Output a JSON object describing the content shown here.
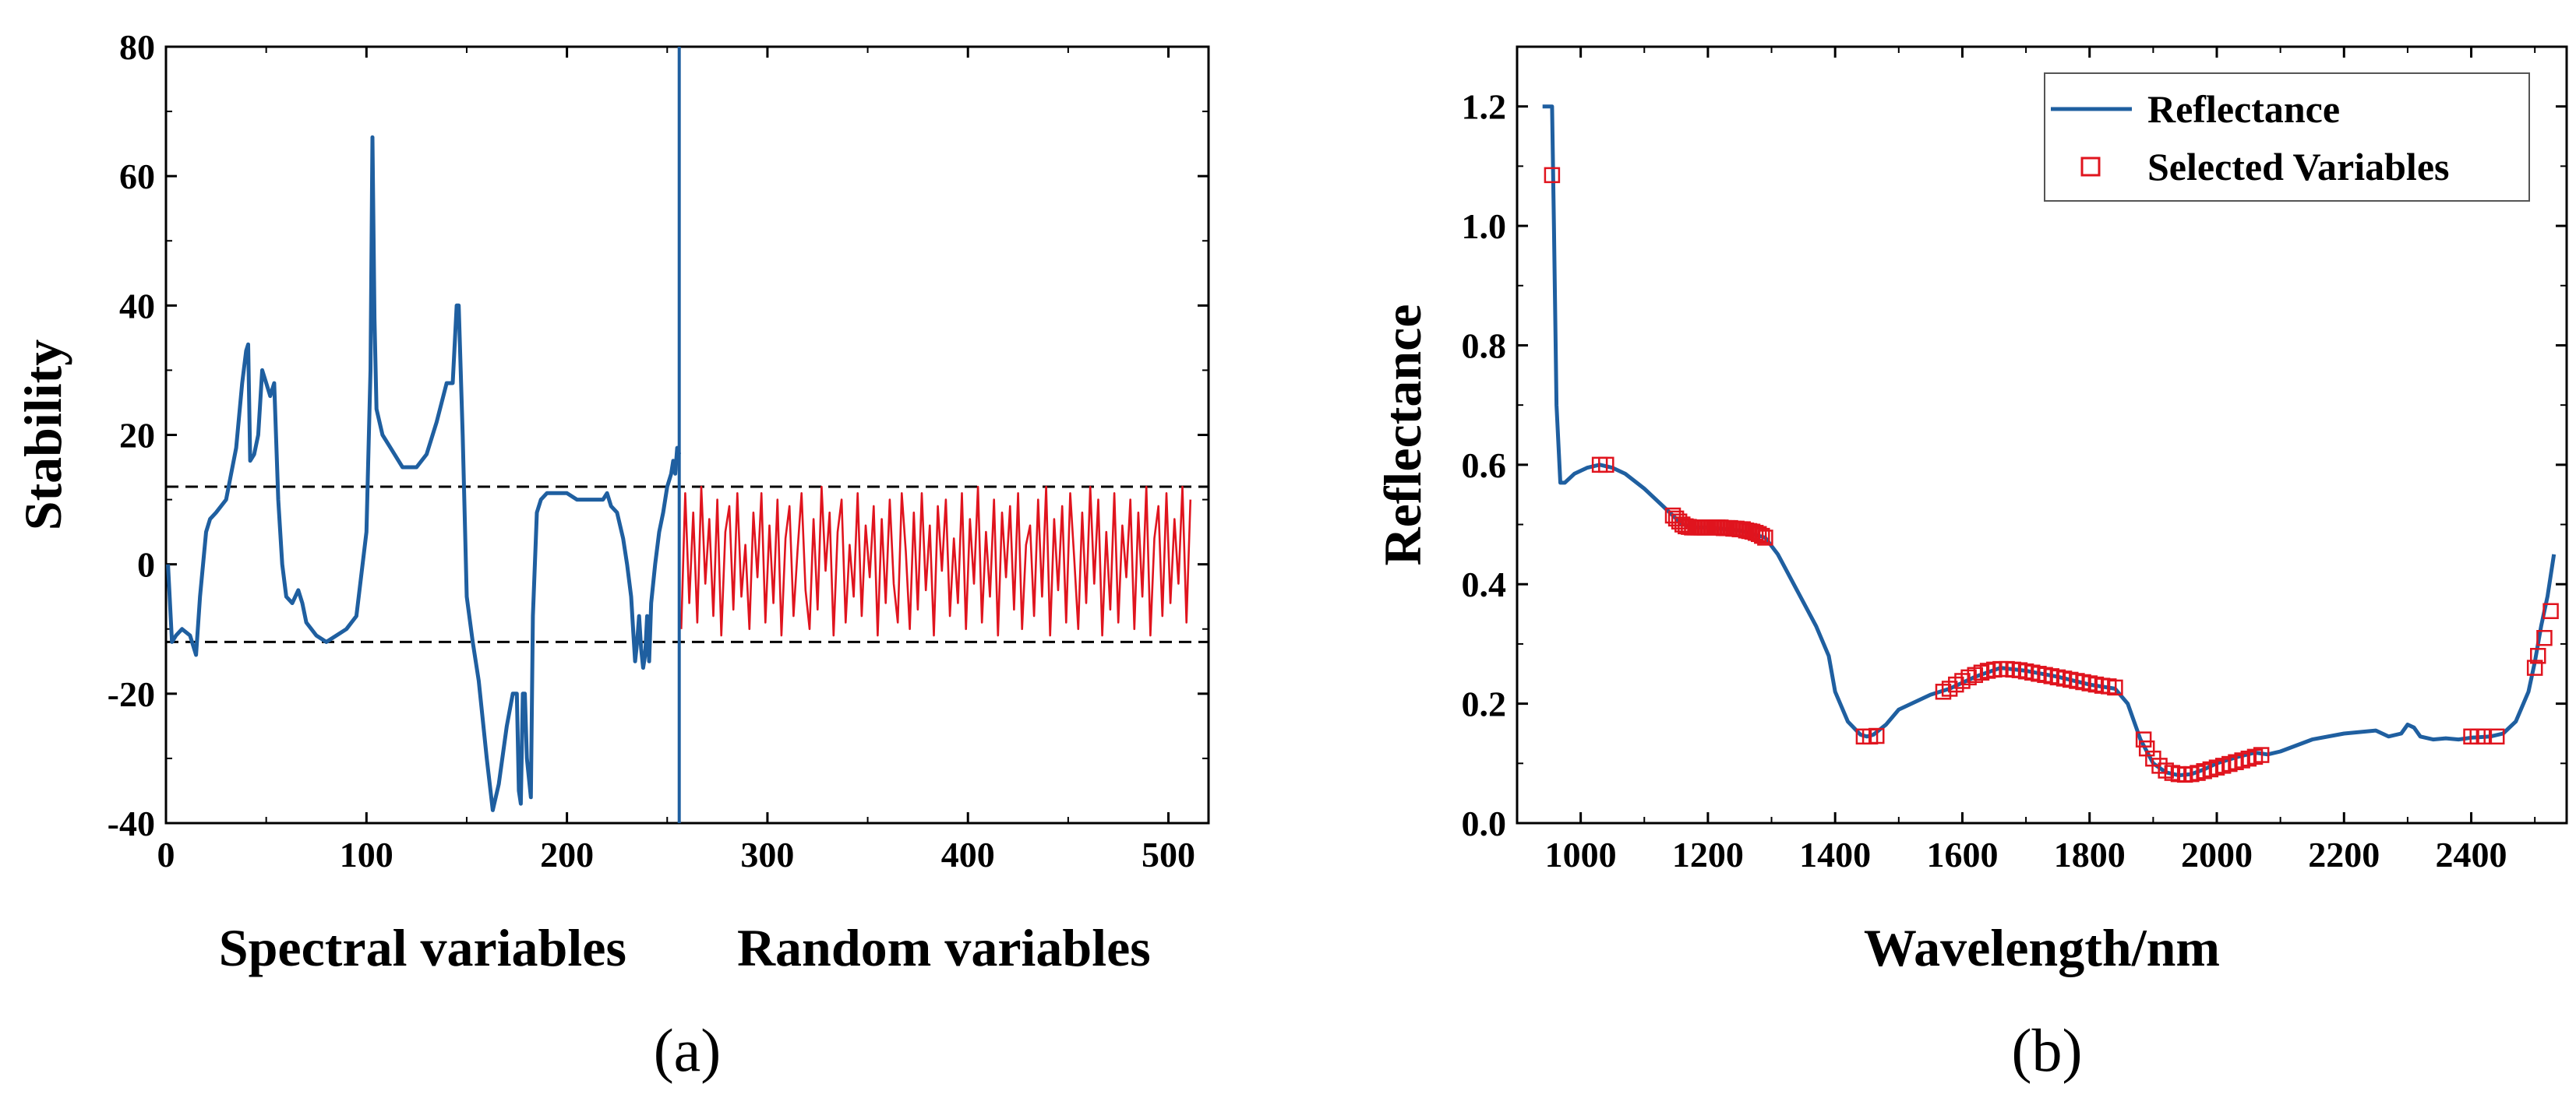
{
  "colors": {
    "spectral": "#1f5fa0",
    "random": "#e0141e",
    "marker": "#e0141e",
    "axis": "#000000"
  },
  "chart_data": [
    {
      "type": "line",
      "panel_label": "(a)",
      "title": "",
      "xlabel_left": "Spectral variables",
      "xlabel_right": "Random variables",
      "ylabel": "Stability",
      "xlim": [
        0,
        520
      ],
      "ylim": [
        -40,
        80
      ],
      "xticks": [
        0,
        100,
        200,
        300,
        400,
        500
      ],
      "yticks": [
        -40,
        -20,
        0,
        20,
        40,
        60,
        80
      ],
      "threshold_lines": [
        12,
        -12
      ],
      "divider_x": 256,
      "series": [
        {
          "name": "Spectral variables",
          "x": [
            1,
            3,
            5,
            8,
            12,
            15,
            17,
            20,
            22,
            25,
            30,
            35,
            38,
            40,
            41,
            42,
            44,
            46,
            48,
            50,
            52,
            54,
            56,
            58,
            60,
            63,
            66,
            68,
            70,
            75,
            80,
            85,
            90,
            95,
            100,
            102,
            103,
            104,
            105,
            108,
            112,
            118,
            125,
            130,
            135,
            140,
            143,
            145,
            146,
            148,
            150,
            153,
            156,
            160,
            163,
            166,
            170,
            173,
            175,
            176,
            177,
            178,
            179,
            180,
            182,
            183,
            185,
            187,
            190,
            195,
            200,
            205,
            210,
            215,
            218,
            220,
            222,
            225,
            228,
            230,
            232,
            233,
            234,
            235,
            236,
            237,
            238,
            239,
            240,
            241,
            242,
            244,
            246,
            248,
            250,
            252,
            253,
            254,
            255,
            256
          ],
          "values": [
            0,
            -12,
            -11,
            -10,
            -11,
            -14,
            -5,
            5,
            7,
            8,
            10,
            18,
            28,
            33,
            34,
            16,
            17,
            20,
            30,
            28,
            26,
            28,
            10,
            0,
            -5,
            -6,
            -4,
            -6,
            -9,
            -11,
            -12,
            -11,
            -10,
            -8,
            5,
            30,
            66,
            38,
            24,
            20,
            18,
            15,
            15,
            17,
            22,
            28,
            28,
            40,
            40,
            20,
            -5,
            -12,
            -18,
            -30,
            -38,
            -34,
            -25,
            -20,
            -20,
            -35,
            -37,
            -20,
            -20,
            -30,
            -36,
            -8,
            8,
            10,
            11,
            11,
            11,
            10,
            10,
            10,
            10,
            11,
            9,
            8,
            4,
            0,
            -5,
            -10,
            -15,
            -12,
            -8,
            -13,
            -16,
            -14,
            -8,
            -15,
            -6,
            0,
            5,
            8,
            12,
            14,
            16,
            14,
            18,
            17
          ]
        },
        {
          "name": "Random variables",
          "x": [
            257,
            259,
            261,
            263,
            265,
            267,
            269,
            271,
            273,
            275,
            277,
            279,
            281,
            283,
            285,
            287,
            289,
            291,
            293,
            295,
            297,
            299,
            301,
            303,
            305,
            307,
            309,
            311,
            313,
            315,
            317,
            319,
            321,
            323,
            325,
            327,
            329,
            331,
            333,
            335,
            337,
            339,
            341,
            343,
            345,
            347,
            349,
            351,
            353,
            355,
            357,
            359,
            361,
            363,
            365,
            367,
            369,
            371,
            373,
            375,
            377,
            379,
            381,
            383,
            385,
            387,
            389,
            391,
            393,
            395,
            397,
            399,
            401,
            403,
            405,
            407,
            409,
            411,
            413,
            415,
            417,
            419,
            421,
            423,
            425,
            427,
            429,
            431,
            433,
            435,
            437,
            439,
            441,
            443,
            445,
            447,
            449,
            451,
            453,
            455,
            457,
            459,
            461,
            463,
            465,
            467,
            469,
            471,
            473,
            475,
            477,
            479,
            481,
            483,
            485,
            487,
            489,
            491,
            493,
            495,
            497,
            499,
            501,
            503,
            505,
            507,
            509,
            511
          ],
          "values": [
            -10,
            11,
            -6,
            8,
            -9,
            12,
            -3,
            7,
            -8,
            10,
            -11,
            5,
            9,
            -7,
            11,
            -5,
            3,
            -10,
            8,
            -2,
            11,
            -9,
            6,
            -6,
            10,
            -11,
            4,
            9,
            -8,
            2,
            11,
            -4,
            -10,
            7,
            -7,
            12,
            -1,
            8,
            -11,
            5,
            10,
            -9,
            3,
            -5,
            11,
            -8,
            6,
            -2,
            9,
            -11,
            7,
            -6,
            10,
            -3,
            -9,
            11,
            2,
            -10,
            8,
            -7,
            11,
            -4,
            6,
            -11,
            9,
            -1,
            10,
            -8,
            4,
            -6,
            11,
            -10,
            7,
            -3,
            12,
            -9,
            5,
            -5,
            10,
            -11,
            8,
            -2,
            9,
            -7,
            11,
            -10,
            3,
            6,
            -8,
            10,
            -5,
            12,
            -11,
            7,
            -4,
            9,
            -9,
            11,
            1,
            -10,
            8,
            -6,
            12,
            -3,
            10,
            -11,
            5,
            -7,
            11,
            -9,
            6,
            -2,
            10,
            -10,
            8,
            -5,
            12,
            -11,
            4,
            9,
            -8,
            11,
            -6,
            7,
            -3,
            12,
            -9,
            10
          ]
        }
      ]
    },
    {
      "type": "line",
      "panel_label": "(b)",
      "title": "",
      "xlabel": "Wavelength/nm",
      "ylabel": "Reflectance",
      "xlim": [
        900,
        2550
      ],
      "ylim": [
        0.0,
        1.3
      ],
      "xticks": [
        1000,
        1200,
        1400,
        1600,
        1800,
        2000,
        2200,
        2400
      ],
      "yticks": [
        0.0,
        0.2,
        0.4,
        0.6,
        0.8,
        1.0,
        1.2
      ],
      "ytick_labels": [
        "0.0",
        "0.2",
        "0.4",
        "0.6",
        "0.8",
        "1.0",
        "1.2"
      ],
      "legend_position": "top-right",
      "legend": [
        "Reflectance",
        "Selected Variables"
      ],
      "series": [
        {
          "name": "Reflectance",
          "x": [
            940,
            955,
            958,
            962,
            968,
            975,
            990,
            1010,
            1030,
            1050,
            1070,
            1100,
            1130,
            1150,
            1160,
            1180,
            1200,
            1250,
            1290,
            1310,
            1340,
            1370,
            1390,
            1400,
            1420,
            1440,
            1450,
            1460,
            1480,
            1500,
            1550,
            1580,
            1620,
            1660,
            1700,
            1750,
            1800,
            1840,
            1860,
            1880,
            1900,
            1920,
            1940,
            1960,
            1980,
            2000,
            2030,
            2060,
            2080,
            2100,
            2150,
            2200,
            2250,
            2270,
            2290,
            2300,
            2310,
            2320,
            2340,
            2360,
            2380,
            2400,
            2430,
            2450,
            2470,
            2490,
            2500,
            2510,
            2520,
            2530
          ],
          "values": [
            1.2,
            1.2,
            1.0,
            0.7,
            0.57,
            0.57,
            0.585,
            0.595,
            0.6,
            0.595,
            0.585,
            0.56,
            0.53,
            0.51,
            0.5,
            0.495,
            0.495,
            0.49,
            0.478,
            0.45,
            0.39,
            0.33,
            0.28,
            0.22,
            0.17,
            0.148,
            0.145,
            0.148,
            0.165,
            0.19,
            0.215,
            0.225,
            0.245,
            0.26,
            0.255,
            0.245,
            0.232,
            0.225,
            0.2,
            0.14,
            0.1,
            0.085,
            0.08,
            0.082,
            0.09,
            0.1,
            0.11,
            0.118,
            0.115,
            0.12,
            0.14,
            0.15,
            0.155,
            0.145,
            0.15,
            0.165,
            0.16,
            0.145,
            0.14,
            0.142,
            0.14,
            0.143,
            0.145,
            0.15,
            0.17,
            0.22,
            0.27,
            0.33,
            0.38,
            0.45
          ]
        },
        {
          "name": "Selected Variables",
          "x": [
            955,
            1030,
            1040,
            1145,
            1150,
            1155,
            1160,
            1165,
            1170,
            1175,
            1180,
            1185,
            1190,
            1195,
            1200,
            1205,
            1210,
            1215,
            1220,
            1225,
            1230,
            1235,
            1240,
            1245,
            1250,
            1255,
            1260,
            1265,
            1270,
            1275,
            1280,
            1285,
            1290,
            1445,
            1455,
            1465,
            1570,
            1580,
            1590,
            1600,
            1610,
            1620,
            1630,
            1640,
            1650,
            1660,
            1670,
            1680,
            1690,
            1700,
            1710,
            1720,
            1730,
            1740,
            1750,
            1760,
            1770,
            1780,
            1790,
            1800,
            1810,
            1820,
            1830,
            1840,
            1885,
            1890,
            1900,
            1910,
            1920,
            1930,
            1940,
            1950,
            1960,
            1970,
            1980,
            1990,
            2000,
            2010,
            2020,
            2030,
            2040,
            2050,
            2060,
            2070,
            2400,
            2410,
            2420,
            2440,
            2500,
            2505,
            2515,
            2525
          ],
          "values": [
            1.085,
            0.6,
            0.6,
            0.515,
            0.51,
            0.505,
            0.5,
            0.497,
            0.496,
            0.495,
            0.495,
            0.495,
            0.495,
            0.495,
            0.495,
            0.495,
            0.495,
            0.495,
            0.495,
            0.494,
            0.494,
            0.494,
            0.493,
            0.493,
            0.492,
            0.492,
            0.49,
            0.489,
            0.488,
            0.486,
            0.484,
            0.481,
            0.478,
            0.145,
            0.145,
            0.146,
            0.22,
            0.225,
            0.232,
            0.238,
            0.244,
            0.248,
            0.252,
            0.255,
            0.257,
            0.258,
            0.258,
            0.257,
            0.256,
            0.254,
            0.252,
            0.25,
            0.248,
            0.246,
            0.244,
            0.242,
            0.24,
            0.238,
            0.236,
            0.234,
            0.232,
            0.23,
            0.229,
            0.227,
            0.14,
            0.125,
            0.108,
            0.096,
            0.088,
            0.084,
            0.082,
            0.081,
            0.082,
            0.084,
            0.087,
            0.09,
            0.093,
            0.096,
            0.099,
            0.102,
            0.105,
            0.108,
            0.111,
            0.114,
            0.145,
            0.145,
            0.145,
            0.145,
            0.26,
            0.28,
            0.31,
            0.355
          ]
        }
      ]
    }
  ]
}
